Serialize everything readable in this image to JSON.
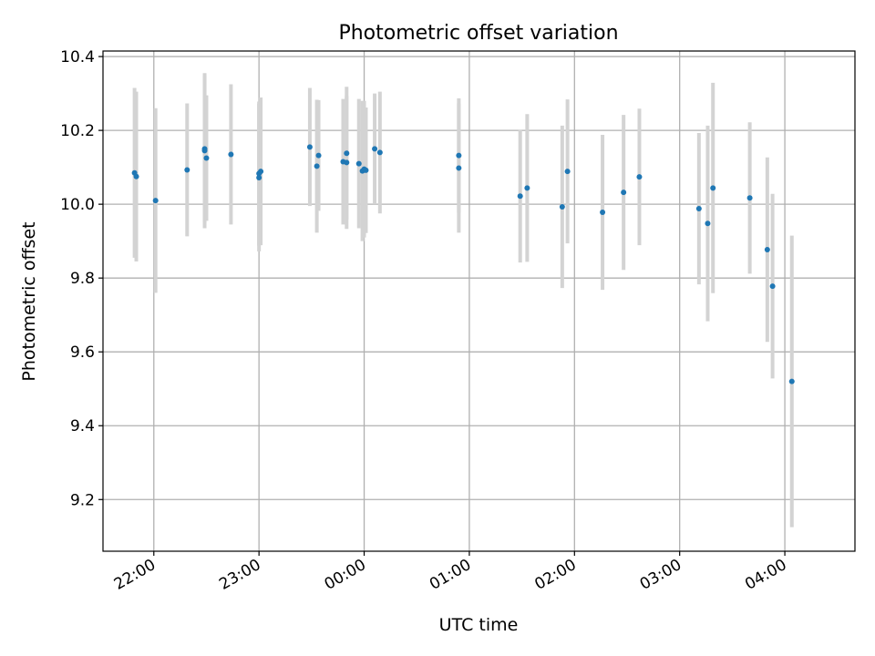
{
  "chart_data": {
    "type": "scatter",
    "title": "Photometric offset variation",
    "xlabel": "UTC time",
    "ylabel": "Photometric offset",
    "x_axis": {
      "kind": "time",
      "tick_labels": [
        "22:00",
        "23:00",
        "00:00",
        "01:00",
        "02:00",
        "03:00",
        "04:00"
      ],
      "range": [
        "21:31",
        "04:40"
      ]
    },
    "y_axis": {
      "ticks": [
        9.2,
        9.4,
        9.6,
        9.8,
        10.0,
        10.2,
        10.4
      ],
      "tick_labels": [
        "9.2",
        "9.4",
        "9.6",
        "9.8",
        "10.0",
        "10.2",
        "10.4"
      ],
      "range": [
        9.06,
        10.415
      ]
    },
    "grid": true,
    "colors": {
      "points": "#1f77b4",
      "errorbars": "#d3d3d3",
      "grid": "#b0b0b0"
    },
    "points": [
      {
        "t": "21:49",
        "y": 10.085,
        "err": 0.23
      },
      {
        "t": "21:50",
        "y": 10.075,
        "err": 0.23
      },
      {
        "t": "22:01",
        "y": 10.01,
        "err": 0.25
      },
      {
        "t": "22:19",
        "y": 10.093,
        "err": 0.18
      },
      {
        "t": "22:29",
        "y": 10.15,
        "err": 0.2
      },
      {
        "t": "22:29",
        "y": 10.145,
        "err": 0.21
      },
      {
        "t": "22:30",
        "y": 10.125,
        "err": 0.17
      },
      {
        "t": "22:44",
        "y": 10.135,
        "err": 0.19
      },
      {
        "t": "23:00",
        "y": 10.083,
        "err": 0.195
      },
      {
        "t": "23:00",
        "y": 10.072,
        "err": 0.2
      },
      {
        "t": "23:01",
        "y": 10.089,
        "err": 0.2
      },
      {
        "t": "23:29",
        "y": 10.155,
        "err": 0.16
      },
      {
        "t": "23:33",
        "y": 10.103,
        "err": 0.18
      },
      {
        "t": "23:34",
        "y": 10.132,
        "err": 0.15
      },
      {
        "t": "23:48",
        "y": 10.115,
        "err": 0.17
      },
      {
        "t": "23:50",
        "y": 10.113,
        "err": 0.18
      },
      {
        "t": "23:50",
        "y": 10.138,
        "err": 0.18
      },
      {
        "t": "23:57",
        "y": 10.11,
        "err": 0.175
      },
      {
        "t": "23:59",
        "y": 10.09,
        "err": 0.19
      },
      {
        "t": "00:00",
        "y": 10.095,
        "err": 0.185
      },
      {
        "t": "00:01",
        "y": 10.092,
        "err": 0.17
      },
      {
        "t": "00:06",
        "y": 10.15,
        "err": 0.15
      },
      {
        "t": "00:09",
        "y": 10.14,
        "err": 0.165
      },
      {
        "t": "00:54",
        "y": 10.132,
        "err": 0.155
      },
      {
        "t": "00:54",
        "y": 10.098,
        "err": 0.175
      },
      {
        "t": "01:29",
        "y": 10.022,
        "err": 0.18
      },
      {
        "t": "01:33",
        "y": 10.044,
        "err": 0.2
      },
      {
        "t": "01:53",
        "y": 9.993,
        "err": 0.22
      },
      {
        "t": "01:56",
        "y": 10.089,
        "err": 0.195
      },
      {
        "t": "02:16",
        "y": 9.978,
        "err": 0.21
      },
      {
        "t": "02:28",
        "y": 10.032,
        "err": 0.21
      },
      {
        "t": "02:37",
        "y": 10.074,
        "err": 0.185
      },
      {
        "t": "03:11",
        "y": 9.988,
        "err": 0.205
      },
      {
        "t": "03:16",
        "y": 9.948,
        "err": 0.265
      },
      {
        "t": "03:19",
        "y": 10.044,
        "err": 0.285
      },
      {
        "t": "03:40",
        "y": 10.017,
        "err": 0.205
      },
      {
        "t": "03:50",
        "y": 9.877,
        "err": 0.25
      },
      {
        "t": "03:53",
        "y": 9.778,
        "err": 0.25
      },
      {
        "t": "04:04",
        "y": 9.52,
        "err": 0.395
      }
    ]
  }
}
